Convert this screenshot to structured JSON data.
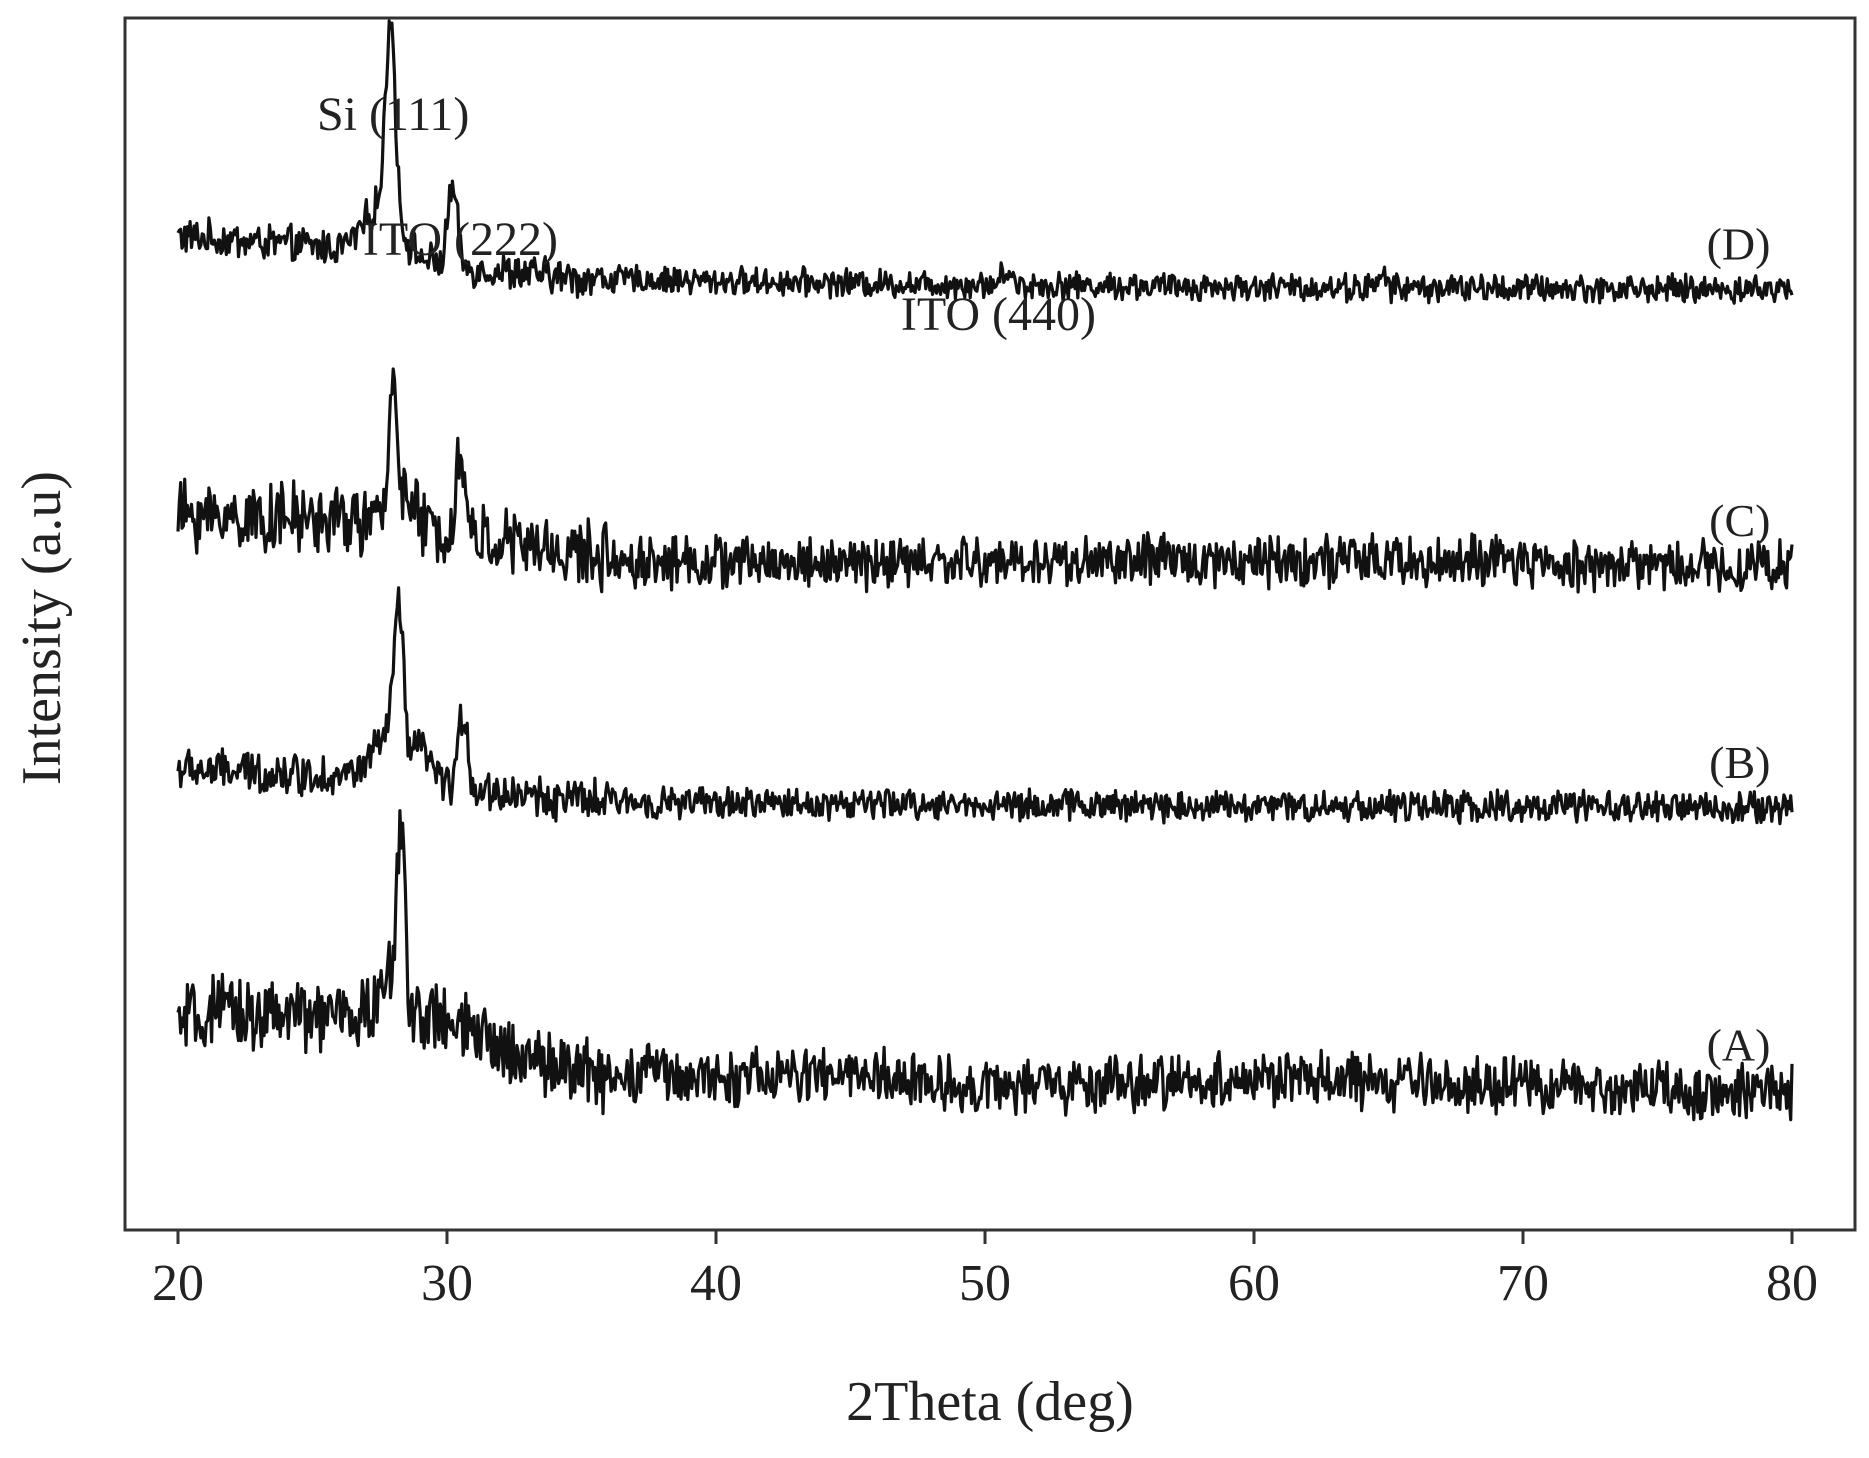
{
  "chart_data": {
    "type": "line",
    "title": "",
    "xlabel": "2Theta (deg)",
    "ylabel": "Intensity (a.u)",
    "xlim": [
      18,
      82
    ],
    "x_ticks": [
      20,
      30,
      40,
      50,
      60,
      70,
      80
    ],
    "x_range_data": [
      20,
      80
    ],
    "ylim": [
      0,
      100
    ],
    "grid": false,
    "legend": "none",
    "colors": {
      "line": "#111111",
      "axis": "#333333",
      "text": "#222222"
    },
    "annotations": [
      {
        "text": "Si (111)",
        "x": 28.0
      },
      {
        "text": "ITO (222)",
        "x": 30.5
      },
      {
        "text": "ITO (440)",
        "x": 50.5
      }
    ],
    "series": [
      {
        "name": "(D)",
        "baseline": [
          [
            20,
            82
          ],
          [
            26,
            81
          ],
          [
            28,
            80.5
          ],
          [
            30,
            79.5
          ],
          [
            35,
            78.5
          ],
          [
            40,
            78.3
          ],
          [
            50,
            78.0
          ],
          [
            60,
            77.8
          ],
          [
            80,
            77.6
          ]
        ],
        "noise": 1.6,
        "peaks": [
          [
            27.9,
            16,
            0.25
          ],
          [
            27.6,
            4,
            0.9
          ],
          [
            30.2,
            6.5,
            0.25
          ],
          [
            50.8,
            1.2,
            0.25
          ],
          [
            64.8,
            1.3,
            0.15
          ]
        ]
      },
      {
        "name": "(C)",
        "baseline": [
          [
            20,
            59
          ],
          [
            27,
            58.5
          ],
          [
            30,
            57.5
          ],
          [
            34,
            56
          ],
          [
            37,
            55.2
          ],
          [
            45,
            55
          ],
          [
            60,
            55.3
          ],
          [
            70,
            55
          ],
          [
            80,
            54.8
          ]
        ],
        "noise": 3.0,
        "peaks": [
          [
            28.0,
            12,
            0.2
          ],
          [
            28.4,
            2.5,
            0.5
          ],
          [
            30.5,
            6.5,
            0.25
          ]
        ]
      },
      {
        "name": "(B)",
        "baseline": [
          [
            20,
            38
          ],
          [
            26,
            37.5
          ],
          [
            28,
            37.5
          ],
          [
            31,
            36.3
          ],
          [
            35,
            35.4
          ],
          [
            40,
            35.2
          ],
          [
            60,
            35
          ],
          [
            80,
            34.8
          ]
        ],
        "noise": 1.8,
        "peaks": [
          [
            28.2,
            12,
            0.25
          ],
          [
            27.8,
            3,
            0.8
          ],
          [
            29.1,
            2.5,
            0.4
          ],
          [
            30.6,
            6,
            0.25
          ]
        ]
      },
      {
        "name": "(A)",
        "baseline": [
          [
            20,
            17
          ],
          [
            22,
            18
          ],
          [
            25,
            17.5
          ],
          [
            28,
            18
          ],
          [
            30,
            17
          ],
          [
            32,
            15
          ],
          [
            35,
            13
          ],
          [
            38,
            12.5
          ],
          [
            45,
            12.8
          ],
          [
            50,
            11.8
          ],
          [
            55,
            12
          ],
          [
            60,
            12.5
          ],
          [
            70,
            11.8
          ],
          [
            80,
            11.5
          ]
        ],
        "noise": 3.2,
        "peaks": [
          [
            28.3,
            13,
            0.2
          ],
          [
            28.0,
            3,
            0.6
          ],
          [
            37.5,
            2,
            0.3
          ]
        ]
      }
    ]
  }
}
